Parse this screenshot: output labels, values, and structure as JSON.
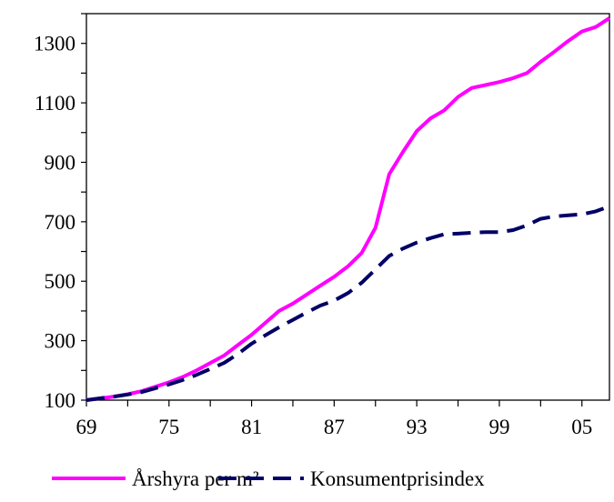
{
  "chart_data": {
    "type": "line",
    "title": "",
    "xlabel": "",
    "ylabel": "",
    "xlim": [
      1969,
      2007
    ],
    "ylim": [
      100,
      1400
    ],
    "x_ticks": [
      1969,
      1975,
      1981,
      1987,
      1993,
      1999,
      2005
    ],
    "x_tick_labels": [
      "69",
      "75",
      "81",
      "87",
      "93",
      "99",
      "05"
    ],
    "y_ticks": [
      100,
      300,
      500,
      700,
      900,
      1100,
      1300
    ],
    "y_tick_labels": [
      "100",
      "300",
      "500",
      "700",
      "900",
      "1100",
      "1300"
    ],
    "grid": false,
    "legend_position": "bottom",
    "x": [
      1969,
      1970,
      1971,
      1972,
      1973,
      1974,
      1975,
      1976,
      1977,
      1978,
      1979,
      1980,
      1981,
      1982,
      1983,
      1984,
      1985,
      1986,
      1987,
      1988,
      1989,
      1990,
      1991,
      1992,
      1993,
      1994,
      1995,
      1996,
      1997,
      1998,
      1999,
      2000,
      2001,
      2002,
      2003,
      2004,
      2005,
      2006,
      2007
    ],
    "series": [
      {
        "name": "Årshyra per m²",
        "color": "#ff00ff",
        "dash": "solid",
        "values": [
          100,
          106,
          112,
          120,
          130,
          145,
          160,
          178,
          200,
          225,
          250,
          285,
          320,
          360,
          400,
          425,
          455,
          485,
          515,
          550,
          595,
          680,
          860,
          935,
          1005,
          1048,
          1075,
          1120,
          1150,
          1160,
          1170,
          1183,
          1200,
          1238,
          1272,
          1308,
          1340,
          1355,
          1385
        ]
      },
      {
        "name": "Konsumentprisindex",
        "color": "#000066",
        "dash": "dashed",
        "values": [
          100,
          106,
          112,
          119,
          127,
          140,
          153,
          168,
          185,
          205,
          225,
          255,
          290,
          318,
          345,
          370,
          395,
          418,
          435,
          460,
          495,
          540,
          585,
          610,
          630,
          645,
          658,
          660,
          663,
          665,
          665,
          672,
          688,
          710,
          718,
          722,
          725,
          735,
          752
        ]
      }
    ]
  }
}
